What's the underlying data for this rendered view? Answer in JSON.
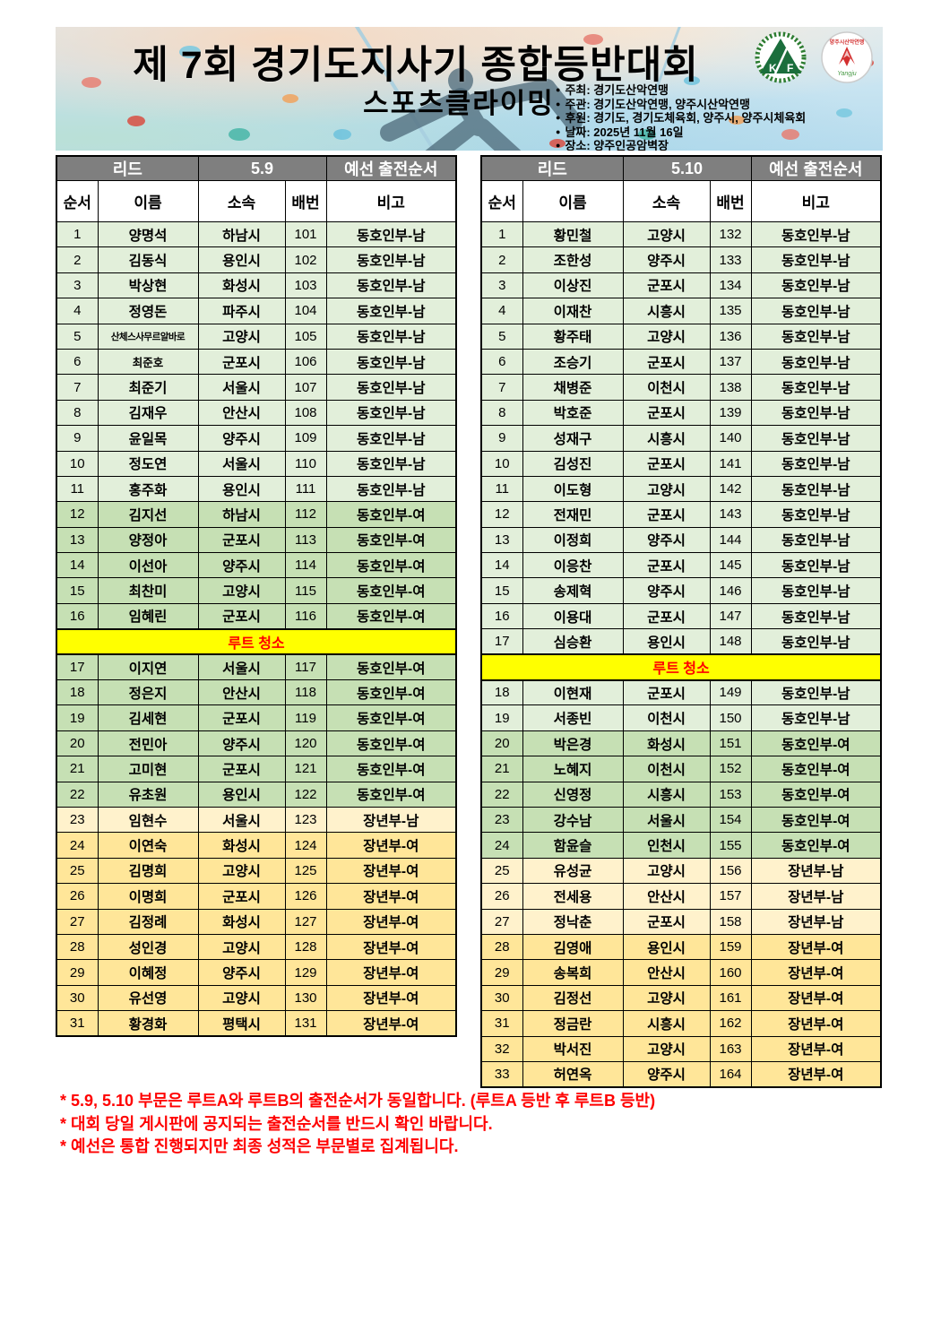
{
  "banner": {
    "title": "제 7회 경기도지사기 종합등반대회",
    "subtitle": "스포츠클라이밍",
    "bullet": "●",
    "info": [
      "주최: 경기도산악연맹",
      "주관: 경기도산악연맹, 양주시산악연맹",
      "후원: 경기도, 경기도체육회, 양주시, 양주시체육회",
      "날짜: 2025년 11월 16일",
      "장소: 양주인공암벽장"
    ],
    "logo1_letters": "K F",
    "logo2_caption": "Yangju"
  },
  "tables": [
    {
      "route": "리드",
      "grade": "5.9",
      "header_right": "예선 출전순서",
      "columns": [
        "순서",
        "이름",
        "소속",
        "배번",
        "비고"
      ],
      "break_label": "루트 청소",
      "rows": [
        {
          "no": "1",
          "name": "양명석",
          "club": "하남시",
          "bib": "101",
          "note": "동호인부-남",
          "cat": "mclub"
        },
        {
          "no": "2",
          "name": "김동식",
          "club": "용인시",
          "bib": "102",
          "note": "동호인부-남",
          "cat": "mclub"
        },
        {
          "no": "3",
          "name": "박상현",
          "club": "화성시",
          "bib": "103",
          "note": "동호인부-남",
          "cat": "mclub"
        },
        {
          "no": "4",
          "name": "정영돈",
          "club": "파주시",
          "bib": "104",
          "note": "동호인부-남",
          "cat": "mclub"
        },
        {
          "no": "5",
          "name": "산체스사무르알바로",
          "club": "고양시",
          "bib": "105",
          "note": "동호인부-남",
          "cat": "mclub",
          "small": 2
        },
        {
          "no": "6",
          "name": "최준호",
          "club": "군포시",
          "bib": "106",
          "note": "동호인부-남",
          "cat": "mclub",
          "small": 1
        },
        {
          "no": "7",
          "name": "최준기",
          "club": "서울시",
          "bib": "107",
          "note": "동호인부-남",
          "cat": "mclub"
        },
        {
          "no": "8",
          "name": "김재우",
          "club": "안산시",
          "bib": "108",
          "note": "동호인부-남",
          "cat": "mclub"
        },
        {
          "no": "9",
          "name": "윤일목",
          "club": "양주시",
          "bib": "109",
          "note": "동호인부-남",
          "cat": "mclub"
        },
        {
          "no": "10",
          "name": "정도연",
          "club": "서울시",
          "bib": "110",
          "note": "동호인부-남",
          "cat": "mclub"
        },
        {
          "no": "11",
          "name": "홍주화",
          "club": "용인시",
          "bib": "111",
          "note": "동호인부-남",
          "cat": "mclub"
        },
        {
          "no": "12",
          "name": "김지선",
          "club": "하남시",
          "bib": "112",
          "note": "동호인부-여",
          "cat": "fclub"
        },
        {
          "no": "13",
          "name": "양정아",
          "club": "군포시",
          "bib": "113",
          "note": "동호인부-여",
          "cat": "fclub"
        },
        {
          "no": "14",
          "name": "이선아",
          "club": "양주시",
          "bib": "114",
          "note": "동호인부-여",
          "cat": "fclub"
        },
        {
          "no": "15",
          "name": "최찬미",
          "club": "고양시",
          "bib": "115",
          "note": "동호인부-여",
          "cat": "fclub"
        },
        {
          "no": "16",
          "name": "임혜린",
          "club": "군포시",
          "bib": "116",
          "note": "동호인부-여",
          "cat": "fclub"
        },
        {
          "type": "break"
        },
        {
          "no": "17",
          "name": "이지연",
          "club": "서울시",
          "bib": "117",
          "note": "동호인부-여",
          "cat": "fclub"
        },
        {
          "no": "18",
          "name": "정은지",
          "club": "안산시",
          "bib": "118",
          "note": "동호인부-여",
          "cat": "fclub"
        },
        {
          "no": "19",
          "name": "김세현",
          "club": "군포시",
          "bib": "119",
          "note": "동호인부-여",
          "cat": "fclub"
        },
        {
          "no": "20",
          "name": "전민아",
          "club": "양주시",
          "bib": "120",
          "note": "동호인부-여",
          "cat": "fclub"
        },
        {
          "no": "21",
          "name": "고미현",
          "club": "군포시",
          "bib": "121",
          "note": "동호인부-여",
          "cat": "fclub"
        },
        {
          "no": "22",
          "name": "유초원",
          "club": "용인시",
          "bib": "122",
          "note": "동호인부-여",
          "cat": "fclub"
        },
        {
          "no": "23",
          "name": "임현수",
          "club": "서울시",
          "bib": "123",
          "note": "장년부-남",
          "cat": "msen"
        },
        {
          "no": "24",
          "name": "이연숙",
          "club": "화성시",
          "bib": "124",
          "note": "장년부-여",
          "cat": "fsen"
        },
        {
          "no": "25",
          "name": "김명희",
          "club": "고양시",
          "bib": "125",
          "note": "장년부-여",
          "cat": "fsen"
        },
        {
          "no": "26",
          "name": "이명희",
          "club": "군포시",
          "bib": "126",
          "note": "장년부-여",
          "cat": "fsen"
        },
        {
          "no": "27",
          "name": "김정례",
          "club": "화성시",
          "bib": "127",
          "note": "장년부-여",
          "cat": "fsen"
        },
        {
          "no": "28",
          "name": "성인경",
          "club": "고양시",
          "bib": "128",
          "note": "장년부-여",
          "cat": "fsen"
        },
        {
          "no": "29",
          "name": "이혜정",
          "club": "양주시",
          "bib": "129",
          "note": "장년부-여",
          "cat": "fsen"
        },
        {
          "no": "30",
          "name": "유선영",
          "club": "고양시",
          "bib": "130",
          "note": "장년부-여",
          "cat": "fsen"
        },
        {
          "no": "31",
          "name": "황경화",
          "club": "평택시",
          "bib": "131",
          "note": "장년부-여",
          "cat": "fsen"
        }
      ]
    },
    {
      "route": "리드",
      "grade": "5.10",
      "header_right": "예선 출전순서",
      "columns": [
        "순서",
        "이름",
        "소속",
        "배번",
        "비고"
      ],
      "break_label": "루트 청소",
      "rows": [
        {
          "no": "1",
          "name": "황민철",
          "club": "고양시",
          "bib": "132",
          "note": "동호인부-남",
          "cat": "mclub"
        },
        {
          "no": "2",
          "name": "조한성",
          "club": "양주시",
          "bib": "133",
          "note": "동호인부-남",
          "cat": "mclub"
        },
        {
          "no": "3",
          "name": "이상진",
          "club": "군포시",
          "bib": "134",
          "note": "동호인부-남",
          "cat": "mclub"
        },
        {
          "no": "4",
          "name": "이재찬",
          "club": "시흥시",
          "bib": "135",
          "note": "동호인부-남",
          "cat": "mclub"
        },
        {
          "no": "5",
          "name": "황주태",
          "club": "고양시",
          "bib": "136",
          "note": "동호인부-남",
          "cat": "mclub"
        },
        {
          "no": "6",
          "name": "조승기",
          "club": "군포시",
          "bib": "137",
          "note": "동호인부-남",
          "cat": "mclub"
        },
        {
          "no": "7",
          "name": "채병준",
          "club": "이천시",
          "bib": "138",
          "note": "동호인부-남",
          "cat": "mclub"
        },
        {
          "no": "8",
          "name": "박호준",
          "club": "군포시",
          "bib": "139",
          "note": "동호인부-남",
          "cat": "mclub"
        },
        {
          "no": "9",
          "name": "성재구",
          "club": "시흥시",
          "bib": "140",
          "note": "동호인부-남",
          "cat": "mclub"
        },
        {
          "no": "10",
          "name": "김성진",
          "club": "군포시",
          "bib": "141",
          "note": "동호인부-남",
          "cat": "mclub"
        },
        {
          "no": "11",
          "name": "이도형",
          "club": "고양시",
          "bib": "142",
          "note": "동호인부-남",
          "cat": "mclub"
        },
        {
          "no": "12",
          "name": "전재민",
          "club": "군포시",
          "bib": "143",
          "note": "동호인부-남",
          "cat": "mclub"
        },
        {
          "no": "13",
          "name": "이정희",
          "club": "양주시",
          "bib": "144",
          "note": "동호인부-남",
          "cat": "mclub"
        },
        {
          "no": "14",
          "name": "이응찬",
          "club": "군포시",
          "bib": "145",
          "note": "동호인부-남",
          "cat": "mclub"
        },
        {
          "no": "15",
          "name": "송제혁",
          "club": "양주시",
          "bib": "146",
          "note": "동호인부-남",
          "cat": "mclub"
        },
        {
          "no": "16",
          "name": "이용대",
          "club": "군포시",
          "bib": "147",
          "note": "동호인부-남",
          "cat": "mclub"
        },
        {
          "no": "17",
          "name": "심승환",
          "club": "용인시",
          "bib": "148",
          "note": "동호인부-남",
          "cat": "mclub"
        },
        {
          "type": "break"
        },
        {
          "no": "18",
          "name": "이현재",
          "club": "군포시",
          "bib": "149",
          "note": "동호인부-남",
          "cat": "mclub"
        },
        {
          "no": "19",
          "name": "서종빈",
          "club": "이천시",
          "bib": "150",
          "note": "동호인부-남",
          "cat": "mclub"
        },
        {
          "no": "20",
          "name": "박은경",
          "club": "화성시",
          "bib": "151",
          "note": "동호인부-여",
          "cat": "fclub"
        },
        {
          "no": "21",
          "name": "노혜지",
          "club": "이천시",
          "bib": "152",
          "note": "동호인부-여",
          "cat": "fclub"
        },
        {
          "no": "22",
          "name": "신영정",
          "club": "시흥시",
          "bib": "153",
          "note": "동호인부-여",
          "cat": "fclub"
        },
        {
          "no": "23",
          "name": "강수남",
          "club": "서울시",
          "bib": "154",
          "note": "동호인부-여",
          "cat": "fclub"
        },
        {
          "no": "24",
          "name": "함윤슬",
          "club": "인천시",
          "bib": "155",
          "note": "동호인부-여",
          "cat": "fclub"
        },
        {
          "no": "25",
          "name": "유성균",
          "club": "고양시",
          "bib": "156",
          "note": "장년부-남",
          "cat": "msen"
        },
        {
          "no": "26",
          "name": "전세용",
          "club": "안산시",
          "bib": "157",
          "note": "장년부-남",
          "cat": "msen"
        },
        {
          "no": "27",
          "name": "정낙춘",
          "club": "군포시",
          "bib": "158",
          "note": "장년부-남",
          "cat": "msen"
        },
        {
          "no": "28",
          "name": "김영애",
          "club": "용인시",
          "bib": "159",
          "note": "장년부-여",
          "cat": "fsen"
        },
        {
          "no": "29",
          "name": "송복희",
          "club": "안산시",
          "bib": "160",
          "note": "장년부-여",
          "cat": "fsen"
        },
        {
          "no": "30",
          "name": "김정선",
          "club": "고양시",
          "bib": "161",
          "note": "장년부-여",
          "cat": "fsen"
        },
        {
          "no": "31",
          "name": "정금란",
          "club": "시흥시",
          "bib": "162",
          "note": "장년부-여",
          "cat": "fsen"
        },
        {
          "no": "32",
          "name": "박서진",
          "club": "고양시",
          "bib": "163",
          "note": "장년부-여",
          "cat": "fsen"
        },
        {
          "no": "33",
          "name": "허연옥",
          "club": "양주시",
          "bib": "164",
          "note": "장년부-여",
          "cat": "fsen"
        }
      ]
    }
  ],
  "footnotes": [
    "* 5.9, 5.10 부문은 루트A와 루트B의 출전순서가 동일합니다. (루트A 등반 후 루트B 등반)",
    "* 대회 당일 게시판에 공지되는 출전순서를 반드시 확인 바랍니다.",
    "* 예선은 통합 진행되지만 최종 성적은 부문별로 집계됩니다."
  ],
  "colors": {
    "header_gray": "#7F7F7F",
    "male_club_green": "#E2EFDA",
    "female_club_green": "#C6E0B4",
    "male_senior_cream": "#FFF2CC",
    "female_senior_gold": "#FFE699",
    "break_yellow": "#FFFF00",
    "accent_red": "#FF0000"
  }
}
